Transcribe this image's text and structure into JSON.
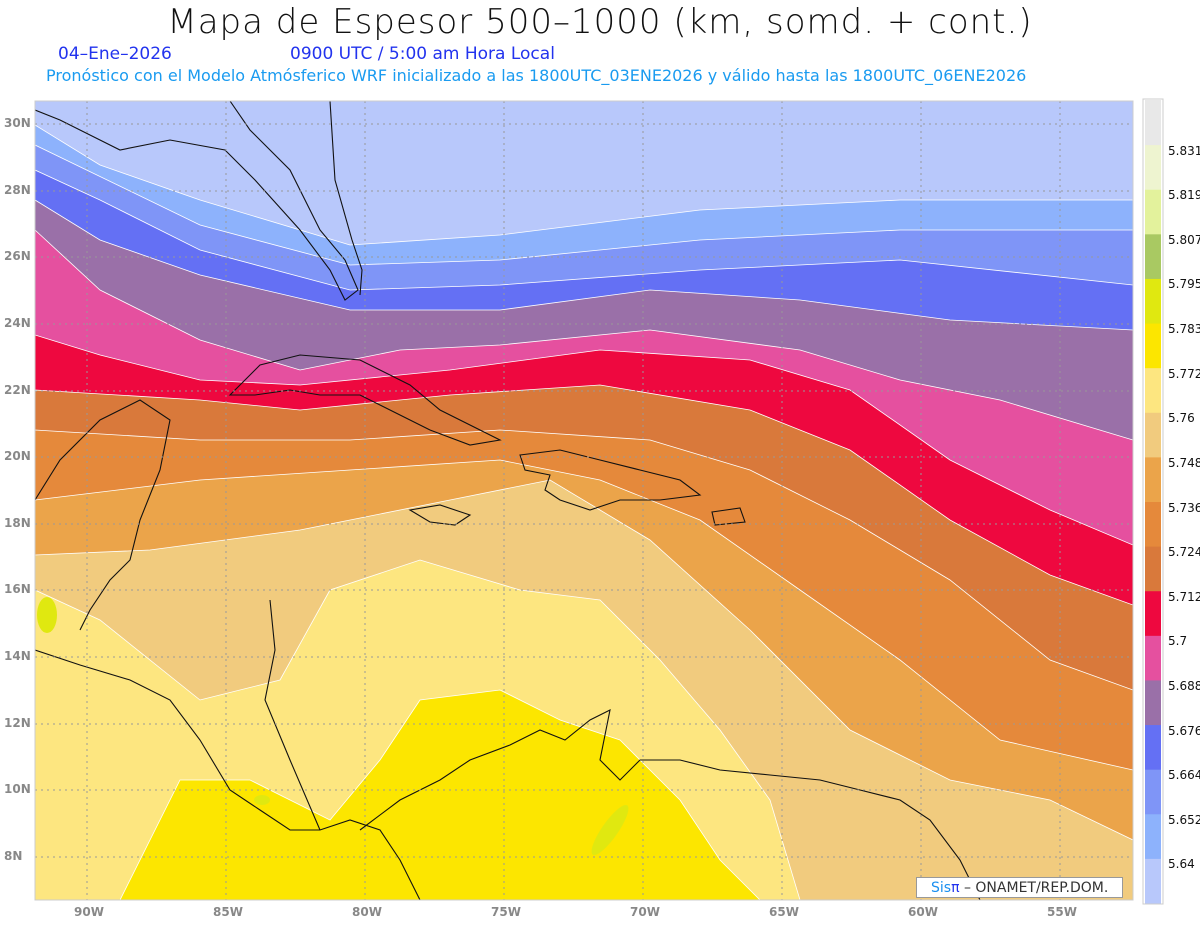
{
  "header": {
    "title": "Mapa de Espesor 500–1000 (km, somd. + cont.)",
    "date": "04–Ene–2026",
    "time": "0900 UTC / 5:00 am Hora Local",
    "subtitle": "Pronóstico con el Modelo Atmósferico WRF inicializado a las 1800UTC_03ENE2026 y válido hasta las  1800UTC_06ENE2026"
  },
  "axes": {
    "lon_labels": [
      "90W",
      "85W",
      "80W",
      "75W",
      "70W",
      "65W",
      "60W",
      "55W"
    ],
    "lat_labels": [
      "30N",
      "28N",
      "26N",
      "24N",
      "22N",
      "20N",
      "18N",
      "16N",
      "14N",
      "12N",
      "10N",
      "8N"
    ]
  },
  "colorbar": {
    "levels": [
      "5.64",
      "5.652",
      "5.664",
      "5.676",
      "5.688",
      "5.7",
      "5.712",
      "5.724",
      "5.736",
      "5.748",
      "5.76",
      "5.772",
      "5.783",
      "5.795",
      "5.807",
      "5.819",
      "5.831"
    ],
    "colors": [
      "#b8c8fb",
      "#8db2fc",
      "#7f95f7",
      "#6470f4",
      "#9a70a8",
      "#e5509f",
      "#ee083f",
      "#d9793b",
      "#e5893b",
      "#eba44a",
      "#f1cb7e",
      "#fde680",
      "#fce600",
      "#e0e810",
      "#a9c962",
      "#e3f29c",
      "#eef4d0",
      "#e8e8e8"
    ]
  },
  "logo": {
    "sis": "Sis",
    "pi": "π",
    "text": " –  ONAMET/REP.DOM."
  }
}
